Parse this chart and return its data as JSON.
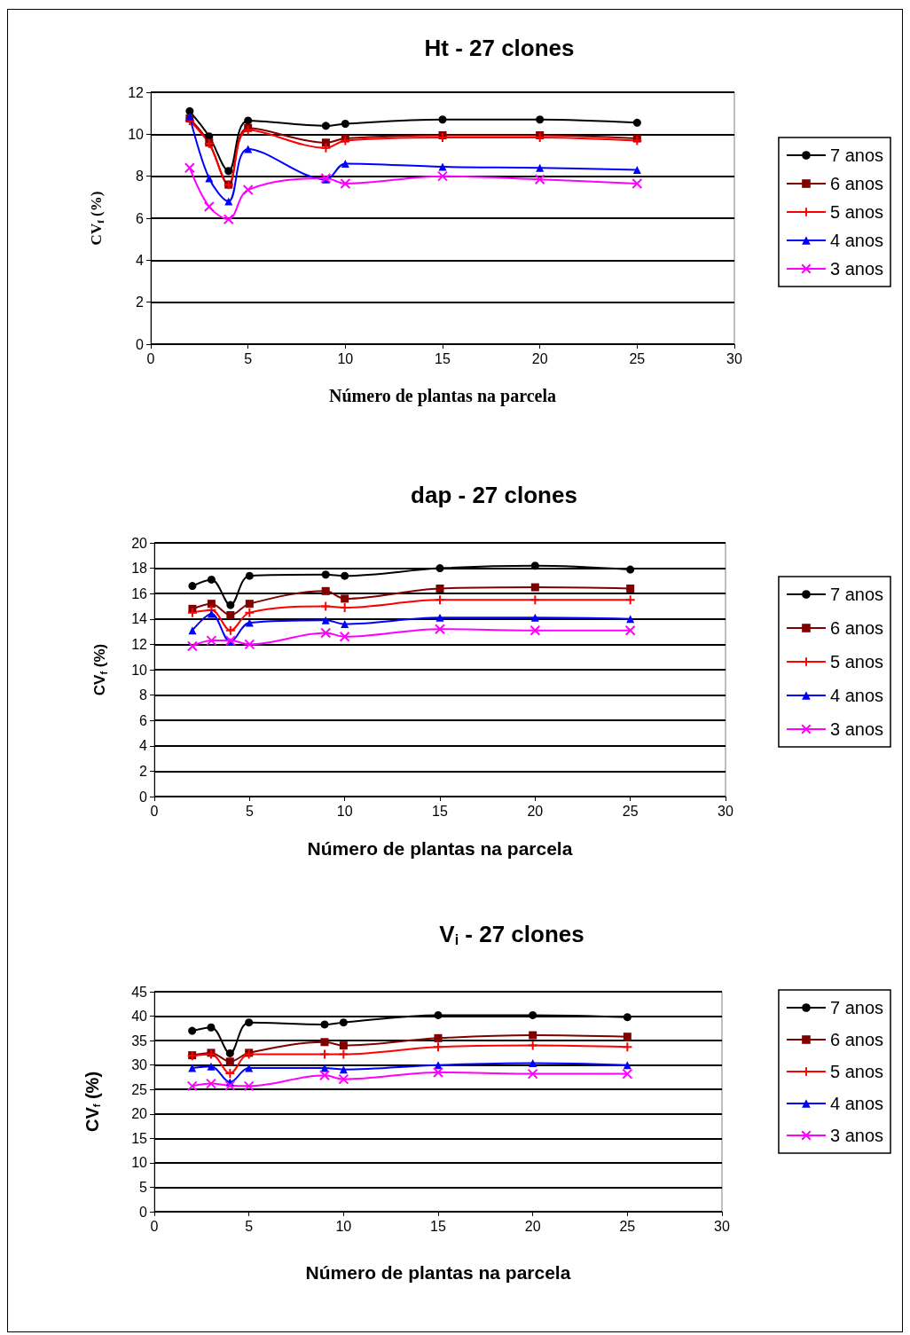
{
  "chart_data": [
    {
      "type": "line",
      "title": "Ht - 27 clones",
      "xlabel": "Número de plantas na parcela",
      "ylabel": "CV$_{f}$ (%)",
      "x": [
        2,
        3,
        4,
        5,
        9,
        10,
        15,
        20,
        25
      ],
      "xlim": [
        0,
        30
      ],
      "xticks": [
        0,
        5,
        10,
        15,
        20,
        25,
        30
      ],
      "ylim": [
        0,
        12
      ],
      "yticks": [
        0,
        2,
        4,
        6,
        8,
        10,
        12
      ],
      "grid": "y",
      "legend": "right",
      "series": [
        {
          "name": "7 anos",
          "color": "#000000",
          "marker": "circle",
          "values": [
            11.1,
            9.9,
            8.25,
            10.65,
            10.4,
            10.5,
            10.7,
            10.7,
            10.55
          ]
        },
        {
          "name": "6 anos",
          "color": "#800000",
          "marker": "square",
          "values": [
            10.75,
            9.6,
            7.6,
            10.3,
            9.6,
            9.8,
            9.95,
            9.95,
            9.8
          ]
        },
        {
          "name": "5 anos",
          "color": "#ff0000",
          "marker": "cross",
          "values": [
            10.65,
            9.55,
            7.6,
            10.2,
            9.35,
            9.7,
            9.85,
            9.85,
            9.7
          ]
        },
        {
          "name": "4 anos",
          "color": "#0000ff",
          "marker": "triangle",
          "values": [
            10.85,
            7.9,
            6.8,
            9.3,
            7.85,
            8.6,
            8.45,
            8.4,
            8.3
          ]
        },
        {
          "name": "3 anos",
          "color": "#ff00ff",
          "marker": "x",
          "values": [
            8.4,
            6.55,
            5.95,
            7.35,
            7.9,
            7.65,
            8.0,
            7.85,
            7.65
          ]
        }
      ]
    },
    {
      "type": "line",
      "title": "dap - 27 clones",
      "xlabel": "Número de plantas na parcela",
      "ylabel": "CV$_{f}$ (%)",
      "x": [
        2,
        3,
        4,
        5,
        9,
        10,
        15,
        20,
        25
      ],
      "xlim": [
        0,
        30
      ],
      "xticks": [
        0,
        5,
        10,
        15,
        20,
        25,
        30
      ],
      "ylim": [
        0,
        20
      ],
      "yticks": [
        0,
        2,
        4,
        6,
        8,
        10,
        12,
        14,
        16,
        18,
        20
      ],
      "grid": "y",
      "legend": "right",
      "series": [
        {
          "name": "7 anos",
          "color": "#000000",
          "marker": "circle",
          "values": [
            16.6,
            17.1,
            15.1,
            17.4,
            17.5,
            17.4,
            18.0,
            18.2,
            17.9
          ]
        },
        {
          "name": "6 anos",
          "color": "#800000",
          "marker": "square",
          "values": [
            14.8,
            15.2,
            14.3,
            15.2,
            16.2,
            15.6,
            16.4,
            16.5,
            16.4
          ]
        },
        {
          "name": "5 anos",
          "color": "#ff0000",
          "marker": "cross",
          "values": [
            14.5,
            14.7,
            13.1,
            14.5,
            15.0,
            14.9,
            15.5,
            15.5,
            15.5
          ]
        },
        {
          "name": "4 anos",
          "color": "#0000ff",
          "marker": "triangle",
          "values": [
            13.1,
            14.4,
            12.2,
            13.7,
            13.9,
            13.6,
            14.1,
            14.1,
            14.0
          ]
        },
        {
          "name": "3 anos",
          "color": "#ff00ff",
          "marker": "x",
          "values": [
            11.85,
            12.3,
            12.3,
            12.0,
            12.9,
            12.6,
            13.2,
            13.1,
            13.1
          ]
        }
      ]
    },
    {
      "type": "line",
      "title": "V$_{i}$ - 27 clones",
      "xlabel": "Número de plantas na parcela",
      "ylabel": "CV$_{f}$ (%)",
      "x": [
        2,
        3,
        4,
        5,
        9,
        10,
        15,
        20,
        25
      ],
      "xlim": [
        0,
        30
      ],
      "xticks": [
        0,
        5,
        10,
        15,
        20,
        25,
        30
      ],
      "ylim": [
        0,
        45
      ],
      "yticks": [
        0,
        5,
        10,
        15,
        20,
        25,
        30,
        35,
        40,
        45
      ],
      "grid": "y",
      "legend": "right",
      "series": [
        {
          "name": "7 anos",
          "color": "#000000",
          "marker": "circle",
          "values": [
            37.0,
            37.7,
            32.4,
            38.7,
            38.3,
            38.7,
            40.2,
            40.2,
            39.8
          ]
        },
        {
          "name": "6 anos",
          "color": "#800000",
          "marker": "square",
          "values": [
            32.0,
            32.5,
            30.7,
            32.5,
            34.7,
            34.0,
            35.5,
            36.1,
            35.8
          ]
        },
        {
          "name": "5 anos",
          "color": "#ff0000",
          "marker": "cross",
          "values": [
            31.9,
            32.2,
            28.3,
            32.2,
            32.2,
            32.2,
            33.7,
            34.0,
            33.7
          ]
        },
        {
          "name": "4 anos",
          "color": "#0000ff",
          "marker": "triangle",
          "values": [
            29.4,
            29.7,
            26.5,
            29.4,
            29.4,
            29.1,
            30.0,
            30.4,
            30.0
          ]
        },
        {
          "name": "3 anos",
          "color": "#ff00ff",
          "marker": "x",
          "values": [
            25.7,
            26.2,
            25.8,
            25.7,
            27.9,
            27.1,
            28.5,
            28.2,
            28.2
          ]
        }
      ]
    }
  ]
}
